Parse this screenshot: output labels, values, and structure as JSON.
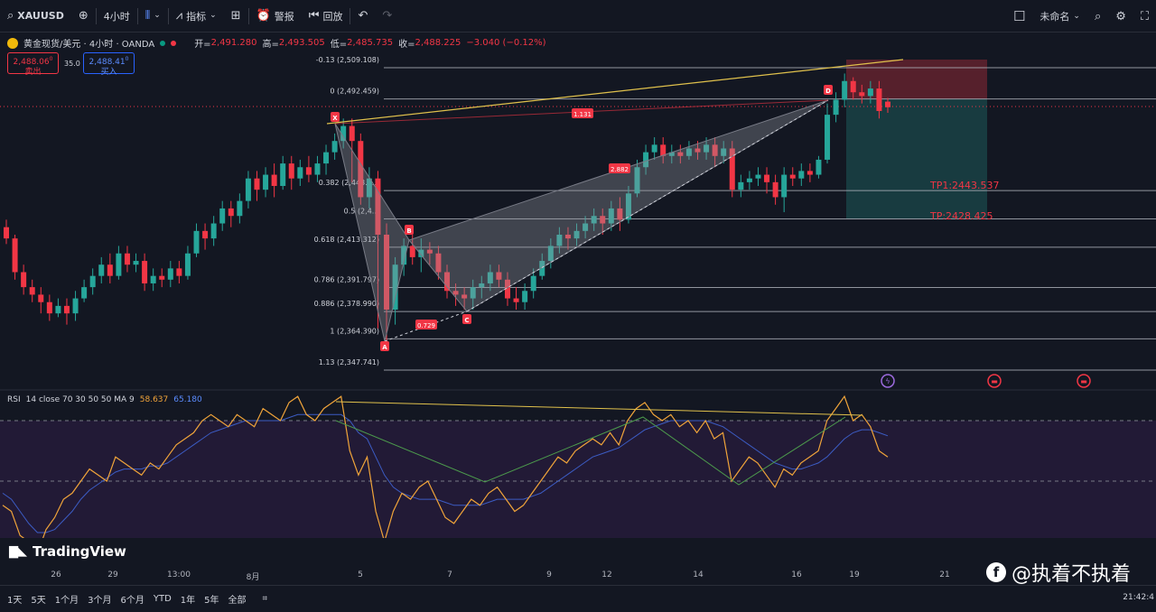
{
  "topbar": {
    "symbol": "XAUUSD",
    "interval": "4小时",
    "indicators": "指标",
    "alert": "警报",
    "replay": "回放",
    "layout_name": "未命名"
  },
  "legend": {
    "title": "黄金现货/美元 · 4小时 · OANDA",
    "open_label": "开=",
    "open": "2,491.280",
    "high_label": "高=",
    "high": "2,493.505",
    "low_label": "低=",
    "low": "2,485.735",
    "close_label": "收=",
    "close": "2,488.225",
    "change": "−3.040 (−0.12%)",
    "sell_price": "2,488.06",
    "sell_sup": "0",
    "sell_label": "卖出",
    "spread": "35.0",
    "buy_price": "2,488.41",
    "buy_sup": "0",
    "buy_label": "买入"
  },
  "colors": {
    "bg": "#131722",
    "up": "#26a69a",
    "down": "#f23645",
    "fib_line": "#b2b5be",
    "pattern_fill": "#9598a1",
    "trend": "#e0c14c",
    "rsi_line": "#f0a43a",
    "rsi_ma": "#3c5cc4",
    "rsi_div": "#4c9a4c",
    "stop_zone": "#f23645",
    "profit_zone": "#26a69a"
  },
  "fib": [
    {
      "label": "-0.13 (2,509.108)",
      "price": 2509.108
    },
    {
      "label": "0 (2,492.459)",
      "price": 2492.459
    },
    {
      "label": "0.382 (2,443.5..)",
      "price": 2443.537
    },
    {
      "label": "0.5 (2,4..)",
      "price": 2428.425
    },
    {
      "label": "0.618 (2,413.312)",
      "price": 2413.312
    },
    {
      "label": "0.786 (2,391.797)",
      "price": 2391.797
    },
    {
      "label": "0.886 (2,378.990)",
      "price": 2378.99
    },
    {
      "label": "1 (2,364.390)",
      "price": 2364.39
    },
    {
      "label": "1.13 (2,347.741)",
      "price": 2347.741
    }
  ],
  "pattern": {
    "points": [
      "X",
      "A",
      "B",
      "C",
      "D"
    ],
    "ratios": [
      "0.729",
      "2.882",
      "1.131"
    ]
  },
  "targets": {
    "tp1": "TP1:2443.537",
    "tp2": "TP:2428.425"
  },
  "rsi": {
    "name": "RSI",
    "params": "14 close 70 30 50 50 MA 9",
    "value": "58.637",
    "ma_value": "65.180",
    "levels": [
      70,
      50,
      30
    ]
  },
  "branding": {
    "tv_logo": "TradingView",
    "watermark": "@执着不执着"
  },
  "xaxis": {
    "labels": [
      "26",
      "29",
      "13:00",
      "8月",
      "5",
      "7",
      "9",
      "12",
      "14",
      "16",
      "19",
      "21"
    ]
  },
  "bottombar": {
    "ranges": [
      "1天",
      "5天",
      "1个月",
      "3个月",
      "6个月",
      "YTD",
      "1年",
      "5年",
      "全部"
    ],
    "clock": "21:42:4"
  },
  "candles": [
    [
      2424,
      2418,
      2415,
      2428
    ],
    [
      2418,
      2400,
      2396,
      2420
    ],
    [
      2400,
      2392,
      2388,
      2404
    ],
    [
      2392,
      2388,
      2384,
      2396
    ],
    [
      2388,
      2384,
      2378,
      2392
    ],
    [
      2384,
      2378,
      2374,
      2388
    ],
    [
      2378,
      2382,
      2376,
      2386
    ],
    [
      2382,
      2378,
      2372,
      2386
    ],
    [
      2378,
      2386,
      2374,
      2390
    ],
    [
      2386,
      2392,
      2384,
      2396
    ],
    [
      2392,
      2398,
      2388,
      2402
    ],
    [
      2398,
      2404,
      2394,
      2408
    ],
    [
      2404,
      2398,
      2394,
      2410
    ],
    [
      2398,
      2410,
      2396,
      2414
    ],
    [
      2410,
      2404,
      2400,
      2414
    ],
    [
      2404,
      2406,
      2400,
      2410
    ],
    [
      2406,
      2394,
      2390,
      2410
    ],
    [
      2394,
      2398,
      2390,
      2402
    ],
    [
      2398,
      2396,
      2392,
      2402
    ],
    [
      2396,
      2402,
      2392,
      2406
    ],
    [
      2402,
      2398,
      2394,
      2406
    ],
    [
      2398,
      2410,
      2396,
      2414
    ],
    [
      2410,
      2422,
      2408,
      2426
    ],
    [
      2422,
      2418,
      2412,
      2426
    ],
    [
      2418,
      2426,
      2414,
      2430
    ],
    [
      2426,
      2434,
      2422,
      2438
    ],
    [
      2434,
      2430,
      2424,
      2438
    ],
    [
      2430,
      2438,
      2426,
      2442
    ],
    [
      2438,
      2450,
      2434,
      2454
    ],
    [
      2450,
      2444,
      2438,
      2454
    ],
    [
      2444,
      2452,
      2440,
      2456
    ],
    [
      2452,
      2446,
      2440,
      2458
    ],
    [
      2446,
      2458,
      2444,
      2462
    ],
    [
      2458,
      2450,
      2444,
      2462
    ],
    [
      2450,
      2456,
      2446,
      2460
    ],
    [
      2456,
      2452,
      2448,
      2462
    ],
    [
      2452,
      2458,
      2448,
      2462
    ],
    [
      2458,
      2464,
      2452,
      2468
    ],
    [
      2464,
      2470,
      2460,
      2474
    ],
    [
      2470,
      2478,
      2466,
      2482
    ],
    [
      2478,
      2470,
      2448,
      2482
    ],
    [
      2470,
      2440,
      2436,
      2474
    ],
    [
      2440,
      2450,
      2434,
      2456
    ],
    [
      2450,
      2420,
      2370,
      2454
    ],
    [
      2420,
      2380,
      2362,
      2426
    ],
    [
      2380,
      2404,
      2372,
      2408
    ],
    [
      2404,
      2414,
      2398,
      2418
    ],
    [
      2414,
      2408,
      2404,
      2420
    ],
    [
      2408,
      2412,
      2400,
      2418
    ],
    [
      2412,
      2410,
      2404,
      2416
    ],
    [
      2410,
      2400,
      2396,
      2414
    ],
    [
      2400,
      2390,
      2386,
      2404
    ],
    [
      2390,
      2388,
      2382,
      2394
    ],
    [
      2388,
      2386,
      2380,
      2392
    ],
    [
      2386,
      2392,
      2380,
      2396
    ],
    [
      2392,
      2394,
      2386,
      2398
    ],
    [
      2394,
      2400,
      2390,
      2404
    ],
    [
      2400,
      2396,
      2392,
      2404
    ],
    [
      2396,
      2386,
      2382,
      2400
    ],
    [
      2386,
      2384,
      2380,
      2392
    ],
    [
      2384,
      2390,
      2380,
      2394
    ],
    [
      2390,
      2398,
      2386,
      2402
    ],
    [
      2398,
      2406,
      2396,
      2410
    ],
    [
      2406,
      2414,
      2402,
      2418
    ],
    [
      2414,
      2420,
      2410,
      2424
    ],
    [
      2420,
      2418,
      2412,
      2424
    ],
    [
      2418,
      2422,
      2414,
      2426
    ],
    [
      2422,
      2426,
      2418,
      2430
    ],
    [
      2426,
      2430,
      2422,
      2434
    ],
    [
      2430,
      2426,
      2420,
      2434
    ],
    [
      2426,
      2434,
      2422,
      2438
    ],
    [
      2434,
      2428,
      2422,
      2440
    ],
    [
      2428,
      2442,
      2426,
      2446
    ],
    [
      2442,
      2456,
      2440,
      2460
    ],
    [
      2456,
      2464,
      2452,
      2468
    ],
    [
      2464,
      2468,
      2460,
      2472
    ],
    [
      2468,
      2462,
      2458,
      2472
    ],
    [
      2462,
      2464,
      2458,
      2468
    ],
    [
      2464,
      2462,
      2458,
      2468
    ],
    [
      2462,
      2466,
      2460,
      2470
    ],
    [
      2466,
      2464,
      2460,
      2470
    ],
    [
      2464,
      2468,
      2460,
      2472
    ],
    [
      2468,
      2462,
      2456,
      2472
    ],
    [
      2462,
      2466,
      2458,
      2470
    ],
    [
      2466,
      2444,
      2440,
      2470
    ],
    [
      2444,
      2448,
      2440,
      2452
    ],
    [
      2448,
      2450,
      2444,
      2454
    ],
    [
      2450,
      2452,
      2446,
      2456
    ],
    [
      2452,
      2448,
      2442,
      2456
    ],
    [
      2448,
      2440,
      2436,
      2452
    ],
    [
      2440,
      2452,
      2432,
      2456
    ],
    [
      2452,
      2450,
      2446,
      2456
    ],
    [
      2450,
      2454,
      2446,
      2458
    ],
    [
      2454,
      2452,
      2448,
      2458
    ],
    [
      2452,
      2460,
      2450,
      2462
    ],
    [
      2460,
      2484,
      2458,
      2490
    ],
    [
      2484,
      2492,
      2480,
      2496
    ],
    [
      2492,
      2502,
      2488,
      2506
    ],
    [
      2502,
      2496,
      2492,
      2504
    ],
    [
      2496,
      2494,
      2490,
      2500
    ],
    [
      2494,
      2498,
      2490,
      2502
    ],
    [
      2498,
      2486,
      2482,
      2502
    ],
    [
      2491,
      2488,
      2485,
      2493
    ]
  ],
  "rsi_series": [
    42,
    40,
    32,
    30,
    26,
    34,
    38,
    44,
    46,
    50,
    54,
    52,
    50,
    58,
    56,
    54,
    52,
    56,
    54,
    58,
    62,
    64,
    66,
    70,
    72,
    70,
    68,
    72,
    70,
    68,
    74,
    72,
    70,
    76,
    78,
    72,
    70,
    74,
    76,
    78,
    60,
    52,
    58,
    40,
    30,
    40,
    46,
    44,
    48,
    50,
    44,
    38,
    36,
    40,
    44,
    42,
    46,
    48,
    44,
    40,
    42,
    46,
    50,
    54,
    58,
    56,
    60,
    62,
    64,
    62,
    66,
    62,
    70,
    74,
    76,
    72,
    70,
    72,
    68,
    70,
    66,
    70,
    64,
    66,
    50,
    54,
    58,
    56,
    52,
    48,
    54,
    52,
    56,
    58,
    60,
    70,
    74,
    78,
    70,
    72,
    68,
    60,
    58
  ],
  "rsi_ma_series": [
    46,
    44,
    40,
    36,
    33,
    33,
    34,
    37,
    40,
    44,
    47,
    49,
    51,
    53,
    54,
    54,
    54,
    55,
    55,
    56,
    58,
    60,
    62,
    64,
    66,
    67,
    68,
    69,
    70,
    70,
    70,
    70,
    70,
    71,
    72,
    72,
    72,
    72,
    72,
    72,
    70,
    66,
    64,
    58,
    52,
    48,
    46,
    45,
    44,
    44,
    44,
    43,
    42,
    42,
    42,
    42,
    43,
    44,
    44,
    44,
    44,
    45,
    46,
    48,
    50,
    52,
    54,
    56,
    58,
    59,
    60,
    61,
    63,
    65,
    67,
    68,
    69,
    70,
    70,
    70,
    70,
    70,
    69,
    68,
    66,
    64,
    62,
    60,
    58,
    56,
    55,
    54,
    54,
    55,
    56,
    58,
    61,
    64,
    66,
    67,
    67,
    66,
    65
  ]
}
